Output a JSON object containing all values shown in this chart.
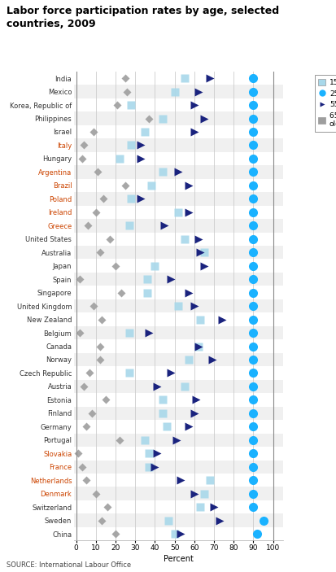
{
  "title": "Labor force participation rates by age, selected\ncountries, 2009",
  "xlabel": "Percent",
  "source": "SOURCE: International Labour Office",
  "categories": [
    "India",
    "Mexico",
    "Korea, Republic of",
    "Philippines",
    "Israel",
    "Italy",
    "Hungary",
    "Argentina",
    "Brazil",
    "Poland",
    "Ireland",
    "Greece",
    "United States",
    "Australia",
    "Japan",
    "Spain",
    "Singapore",
    "United Kingdom",
    "New Zealand",
    "Belgium",
    "Canada",
    "Norway",
    "Czech Republic",
    "Austria",
    "Estonia",
    "Finland",
    "Germany",
    "Portugal",
    "Slovakia",
    "France",
    "Netherlands",
    "Denmark",
    "Switzerland",
    "Sweden",
    "China"
  ],
  "data": {
    "India": [
      55,
      90,
      68,
      25
    ],
    "Mexico": [
      50,
      90,
      62,
      26
    ],
    "Korea, Republic of": [
      28,
      90,
      60,
      21
    ],
    "Philippines": [
      44,
      90,
      65,
      37
    ],
    "Israel": [
      35,
      90,
      60,
      9
    ],
    "Italy": [
      28,
      90,
      33,
      4
    ],
    "Hungary": [
      22,
      90,
      33,
      3
    ],
    "Argentina": [
      44,
      90,
      52,
      11
    ],
    "Brazil": [
      38,
      90,
      57,
      25
    ],
    "Poland": [
      28,
      90,
      33,
      14
    ],
    "Ireland": [
      52,
      90,
      57,
      10
    ],
    "Greece": [
      27,
      90,
      45,
      6
    ],
    "United States": [
      55,
      90,
      62,
      17
    ],
    "Australia": [
      65,
      90,
      63,
      12
    ],
    "Japan": [
      40,
      90,
      65,
      20
    ],
    "Spain": [
      36,
      90,
      48,
      2
    ],
    "Singapore": [
      36,
      90,
      57,
      23
    ],
    "United Kingdom": [
      52,
      90,
      60,
      9
    ],
    "New Zealand": [
      63,
      90,
      74,
      13
    ],
    "Belgium": [
      27,
      90,
      37,
      2
    ],
    "Canada": [
      62,
      90,
      62,
      12
    ],
    "Norway": [
      57,
      90,
      69,
      12
    ],
    "Czech Republic": [
      27,
      90,
      48,
      7
    ],
    "Austria": [
      55,
      90,
      41,
      4
    ],
    "Estonia": [
      44,
      90,
      61,
      15
    ],
    "Finland": [
      44,
      90,
      60,
      8
    ],
    "Germany": [
      46,
      90,
      57,
      5
    ],
    "Portugal": [
      35,
      90,
      51,
      22
    ],
    "Slovakia": [
      37,
      90,
      41,
      1
    ],
    "France": [
      37,
      90,
      40,
      3
    ],
    "Netherlands": [
      68,
      90,
      53,
      5
    ],
    "Denmark": [
      65,
      90,
      60,
      10
    ],
    "Switzerland": [
      63,
      90,
      70,
      16
    ],
    "Sweden": [
      47,
      95,
      73,
      13
    ],
    "China": [
      50,
      92,
      53,
      20
    ]
  },
  "orange_labels": [
    "Italy",
    "Argentina",
    "Brazil",
    "Poland",
    "Ireland",
    "Greece",
    "Netherlands",
    "Denmark",
    "France",
    "Slovakia"
  ],
  "c_15_24": "#a8d8ea",
  "c_25_54": "#1ab2ff",
  "c_55_64": "#1a237e",
  "c_65p": "#9e9e9e",
  "title_color": "#000000",
  "bg_color": "#f5f5f5",
  "row_color": "#ffffff"
}
